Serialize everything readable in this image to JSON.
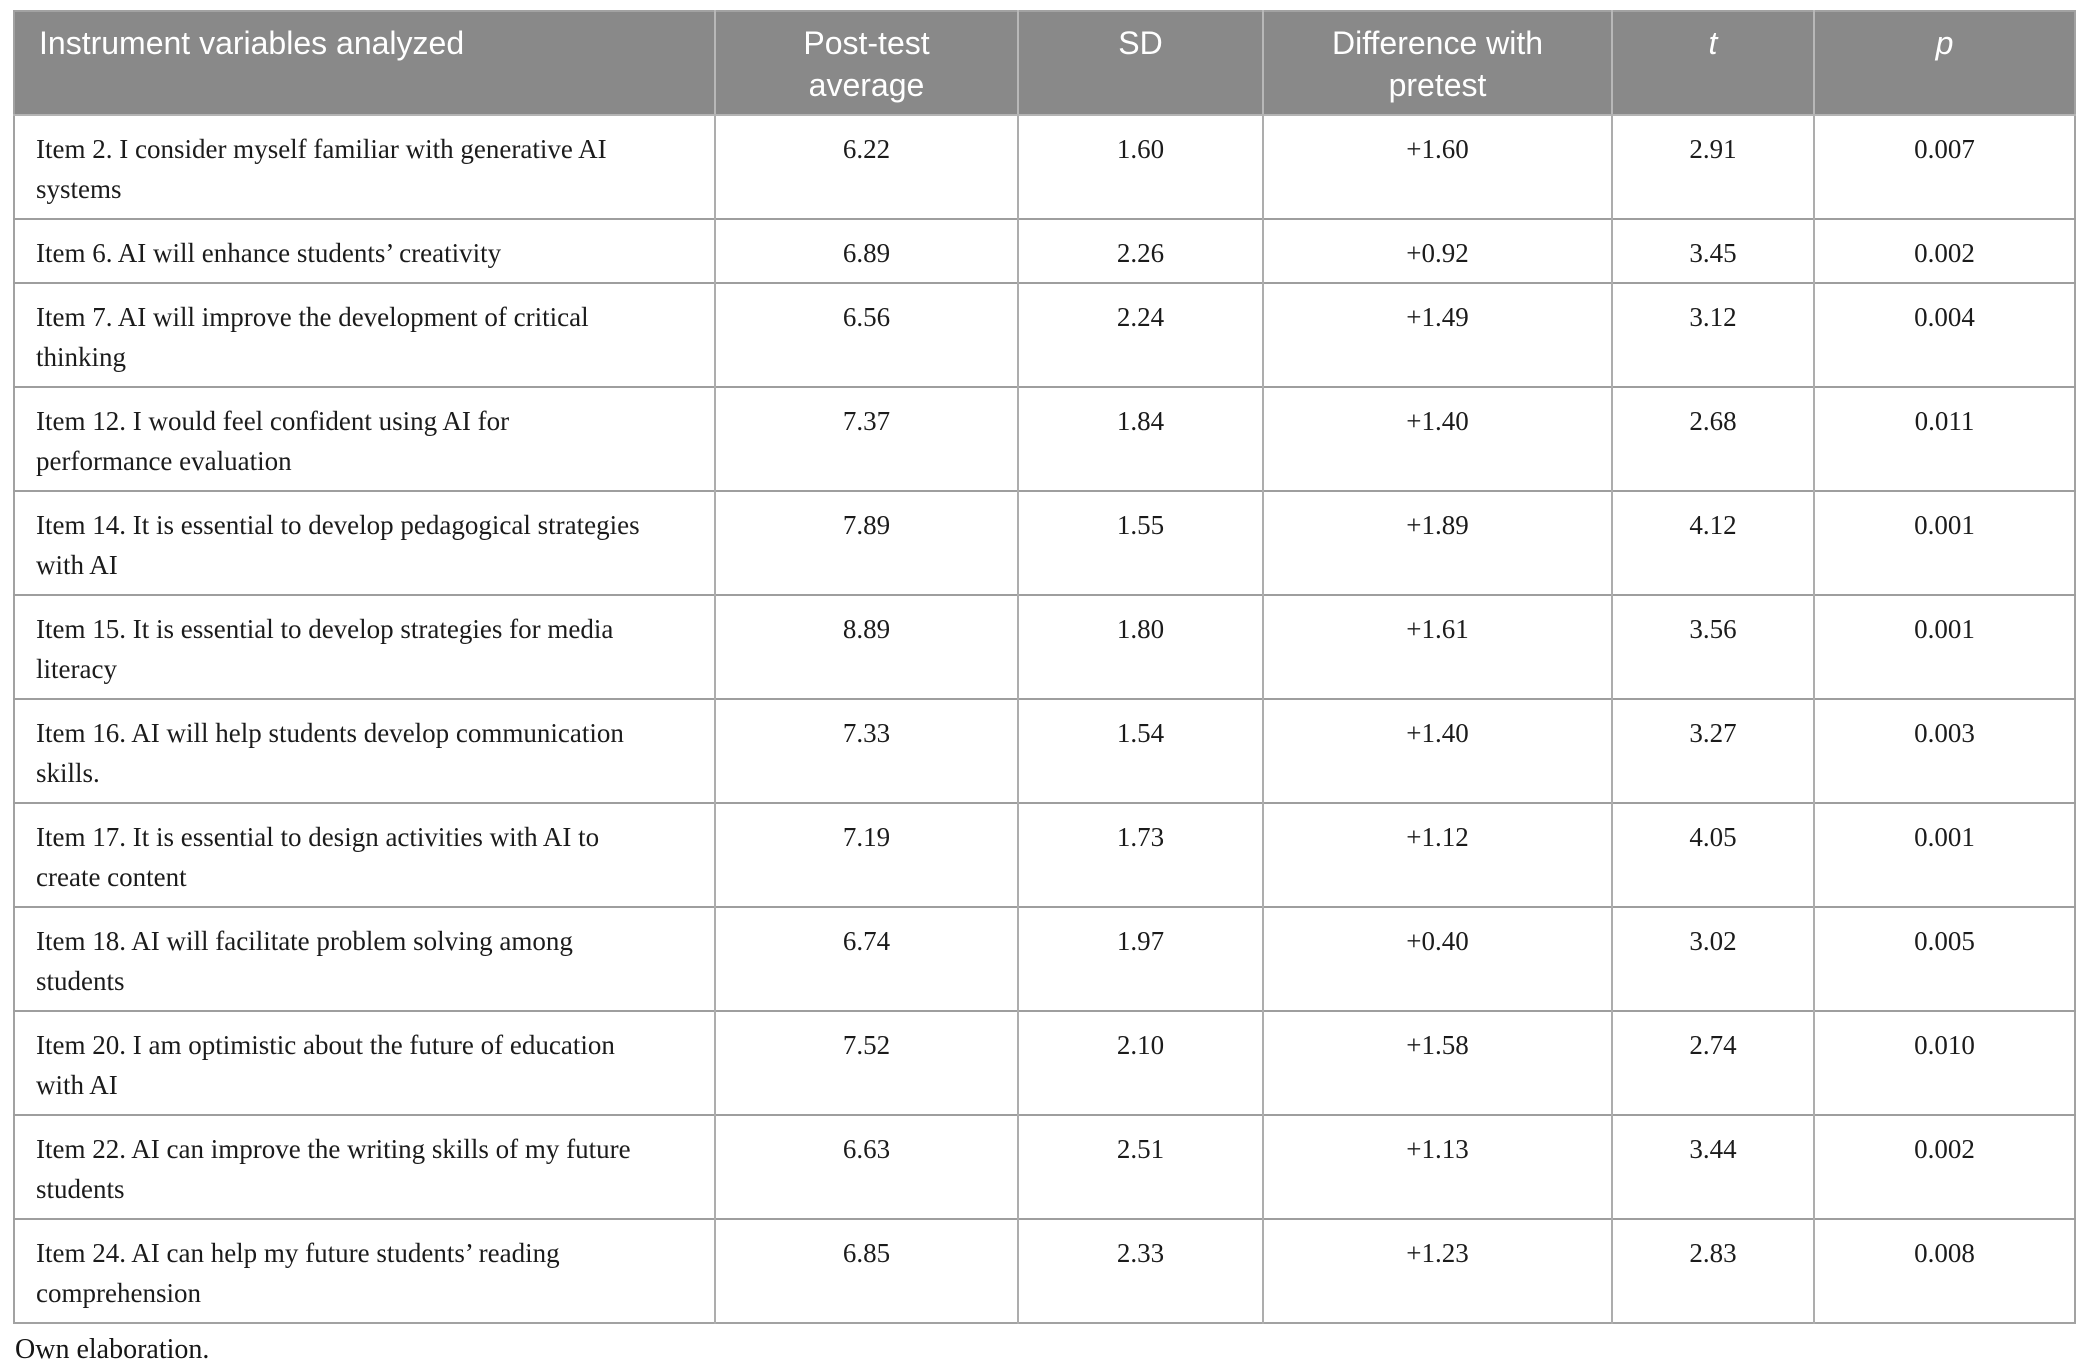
{
  "table": {
    "columns": [
      {
        "key": "variables",
        "label_lines": [
          "Instrument variables analyzed"
        ],
        "align": "left",
        "italic": false
      },
      {
        "key": "post_test_average",
        "label_lines": [
          "Post-test",
          "average"
        ],
        "align": "center",
        "italic": false
      },
      {
        "key": "sd",
        "label_lines": [
          "SD"
        ],
        "align": "center",
        "italic": false
      },
      {
        "key": "difference_with_pretest",
        "label_lines": [
          "Difference with",
          "pretest"
        ],
        "align": "center",
        "italic": false
      },
      {
        "key": "t",
        "label_lines": [
          "t"
        ],
        "align": "center",
        "italic": true
      },
      {
        "key": "p",
        "label_lines": [
          "p"
        ],
        "align": "center",
        "italic": true
      }
    ],
    "rows": [
      {
        "variable_lines": [
          "Item 2. I consider myself familiar with generative AI",
          "systems"
        ],
        "post_test_average": "6.22",
        "sd": "1.60",
        "difference_with_pretest": "+1.60",
        "t": "2.91",
        "p": "0.007"
      },
      {
        "variable_lines": [
          "Item 6. AI will enhance students’ creativity"
        ],
        "post_test_average": "6.89",
        "sd": "2.26",
        "difference_with_pretest": "+0.92",
        "t": "3.45",
        "p": "0.002"
      },
      {
        "variable_lines": [
          "Item 7. AI will improve the development of critical",
          "thinking"
        ],
        "post_test_average": "6.56",
        "sd": "2.24",
        "difference_with_pretest": "+1.49",
        "t": "3.12",
        "p": "0.004"
      },
      {
        "variable_lines": [
          "Item 12. I would feel confident using AI for",
          "performance evaluation"
        ],
        "post_test_average": "7.37",
        "sd": "1.84",
        "difference_with_pretest": "+1.40",
        "t": "2.68",
        "p": "0.011"
      },
      {
        "variable_lines": [
          "Item 14. It is essential to develop pedagogical strategies",
          "with AI"
        ],
        "post_test_average": "7.89",
        "sd": "1.55",
        "difference_with_pretest": "+1.89",
        "t": "4.12",
        "p": "0.001"
      },
      {
        "variable_lines": [
          "Item 15. It is essential to develop strategies for media",
          "literacy"
        ],
        "post_test_average": "8.89",
        "sd": "1.80",
        "difference_with_pretest": "+1.61",
        "t": "3.56",
        "p": "0.001"
      },
      {
        "variable_lines": [
          "Item 16. AI will help students develop communication",
          "skills."
        ],
        "post_test_average": "7.33",
        "sd": "1.54",
        "difference_with_pretest": "+1.40",
        "t": "3.27",
        "p": "0.003"
      },
      {
        "variable_lines": [
          "Item 17. It is essential to design activities with AI to",
          "create content"
        ],
        "post_test_average": "7.19",
        "sd": "1.73",
        "difference_with_pretest": "+1.12",
        "t": "4.05",
        "p": "0.001"
      },
      {
        "variable_lines": [
          "Item 18. AI will facilitate problem solving among",
          "students"
        ],
        "post_test_average": "6.74",
        "sd": "1.97",
        "difference_with_pretest": "+0.40",
        "t": "3.02",
        "p": "0.005"
      },
      {
        "variable_lines": [
          "Item 20. I am optimistic about the future of education",
          "with AI"
        ],
        "post_test_average": "7.52",
        "sd": "2.10",
        "difference_with_pretest": "+1.58",
        "t": "2.74",
        "p": "0.010"
      },
      {
        "variable_lines": [
          "Item 22. AI can improve the writing skills of my future",
          "students"
        ],
        "post_test_average": "6.63",
        "sd": "2.51",
        "difference_with_pretest": "+1.13",
        "t": "3.44",
        "p": "0.002"
      },
      {
        "variable_lines": [
          "Item 24. AI can help my future students’ reading",
          "comprehension"
        ],
        "post_test_average": "6.85",
        "sd": "2.33",
        "difference_with_pretest": "+1.23",
        "t": "2.83",
        "p": "0.008"
      }
    ]
  },
  "footnote": "Own elaboration.",
  "colors": {
    "header_background": "#898989",
    "header_text": "#ffffff",
    "body_text": "#1b1b1b",
    "row_border": "#9e9e9e",
    "column_border": "#adadad"
  }
}
